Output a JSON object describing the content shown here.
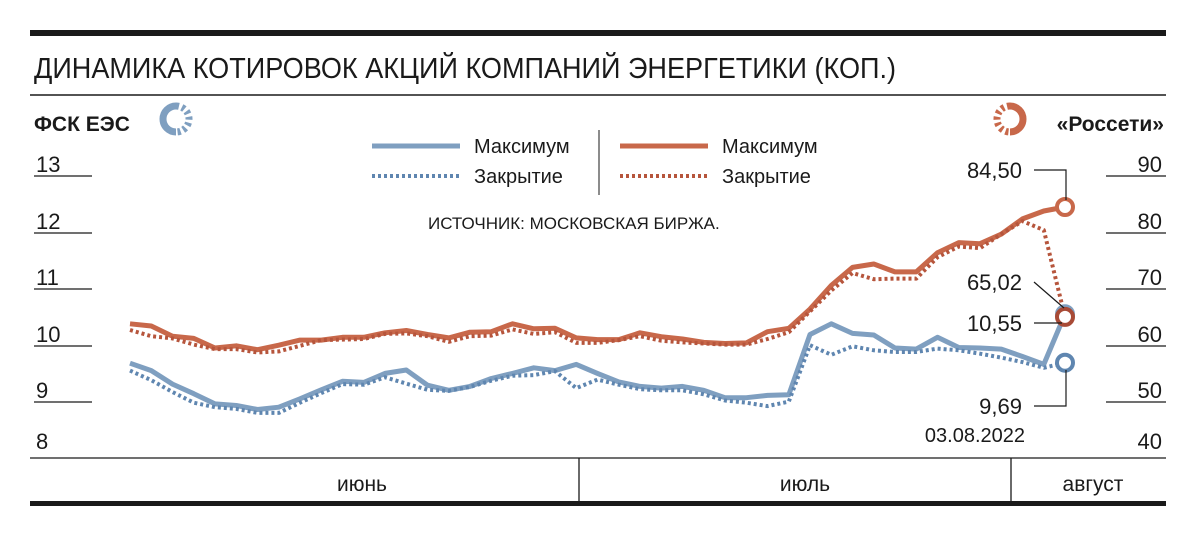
{
  "chart_data": {
    "type": "line",
    "title": "ДИНАМИКА КОТИРОВОК АКЦИЙ КОМПАНИЙ ЭНЕРГЕТИКИ (КОП.)",
    "source": "ИСТОЧНИК: МОСКОВСКАЯ БИРЖА.",
    "left_axis": {
      "label": "ФСК ЕЭС",
      "ticks": [
        "13",
        "12",
        "11",
        "10",
        "9",
        "8"
      ],
      "range": [
        8,
        13
      ]
    },
    "right_axis": {
      "label": "«Россети»",
      "ticks": [
        "90",
        "80",
        "70",
        "60",
        "50",
        "40"
      ],
      "range": [
        40,
        90
      ]
    },
    "months": [
      "июнь",
      "июль",
      "август"
    ],
    "legend": {
      "max_label": "Максимум",
      "close_label": "Закрытие"
    },
    "colors": {
      "fsk": "#7f9fc0",
      "rosseti": "#c8684a",
      "rosseti_dark": "#a84a36"
    },
    "annotations": {
      "rosseti_max": "84,50",
      "rosseti_close": "65,02",
      "fsk_max": "10,55",
      "fsk_close": "9,69",
      "date": "03.08.2022"
    },
    "series": [
      {
        "name": "Максимум",
        "company": "ФСК ЕЭС",
        "axis": "left",
        "style": "solid",
        "values": [
          9.68,
          9.55,
          9.31,
          9.14,
          8.96,
          8.93,
          8.86,
          8.9,
          9.05,
          9.21,
          9.36,
          9.34,
          9.5,
          9.56,
          9.29,
          9.2,
          9.27,
          9.41,
          9.5,
          9.6,
          9.55,
          9.66,
          9.5,
          9.35,
          9.27,
          9.24,
          9.27,
          9.2,
          9.07,
          9.07,
          9.11,
          9.12,
          10.19,
          10.38,
          10.21,
          10.18,
          9.95,
          9.93,
          10.14,
          9.96,
          9.95,
          9.93,
          9.8,
          9.66,
          10.55
        ]
      },
      {
        "name": "Закрытие",
        "company": "ФСК ЕЭС",
        "axis": "left",
        "style": "dotted",
        "values": [
          9.55,
          9.38,
          9.17,
          8.98,
          8.9,
          8.87,
          8.8,
          8.8,
          8.98,
          9.15,
          9.31,
          9.3,
          9.43,
          9.32,
          9.21,
          9.19,
          9.26,
          9.37,
          9.46,
          9.47,
          9.54,
          9.24,
          9.39,
          9.3,
          9.22,
          9.2,
          9.2,
          9.13,
          9.02,
          8.98,
          8.92,
          9.0,
          10.0,
          9.83,
          9.98,
          9.91,
          9.88,
          9.88,
          9.94,
          9.91,
          9.85,
          9.78,
          9.7,
          9.6,
          9.69
        ]
      },
      {
        "name": "Максимум",
        "company": "«Россети»",
        "axis": "right",
        "style": "solid",
        "values": [
          63.8,
          63.4,
          61.6,
          61.2,
          59.5,
          59.9,
          59.2,
          60.0,
          60.9,
          60.9,
          61.4,
          61.4,
          62.2,
          62.6,
          61.9,
          61.3,
          62.3,
          62.4,
          63.8,
          62.9,
          63.0,
          61.3,
          61.0,
          61.0,
          62.2,
          61.5,
          61.1,
          60.5,
          60.3,
          60.4,
          62.4,
          63.0,
          66.4,
          70.6,
          73.8,
          74.4,
          73.0,
          73.0,
          76.4,
          78.2,
          78.0,
          79.7,
          82.4,
          83.8,
          84.5
        ]
      },
      {
        "name": "Закрытие",
        "company": "«Россети»",
        "axis": "right",
        "style": "dotted",
        "values": [
          62.7,
          61.6,
          61.2,
          60.1,
          59.3,
          59.3,
          58.7,
          58.9,
          59.9,
          60.9,
          61.0,
          61.1,
          62.0,
          62.1,
          61.6,
          60.6,
          61.6,
          61.7,
          62.8,
          62.0,
          62.3,
          60.4,
          60.4,
          60.9,
          61.6,
          60.8,
          60.5,
          60.3,
          60.1,
          60.1,
          61.1,
          62.3,
          66.0,
          69.7,
          72.8,
          71.7,
          71.8,
          71.8,
          75.6,
          77.5,
          77.2,
          79.7,
          82.0,
          80.4,
          65.02
        ]
      }
    ]
  }
}
